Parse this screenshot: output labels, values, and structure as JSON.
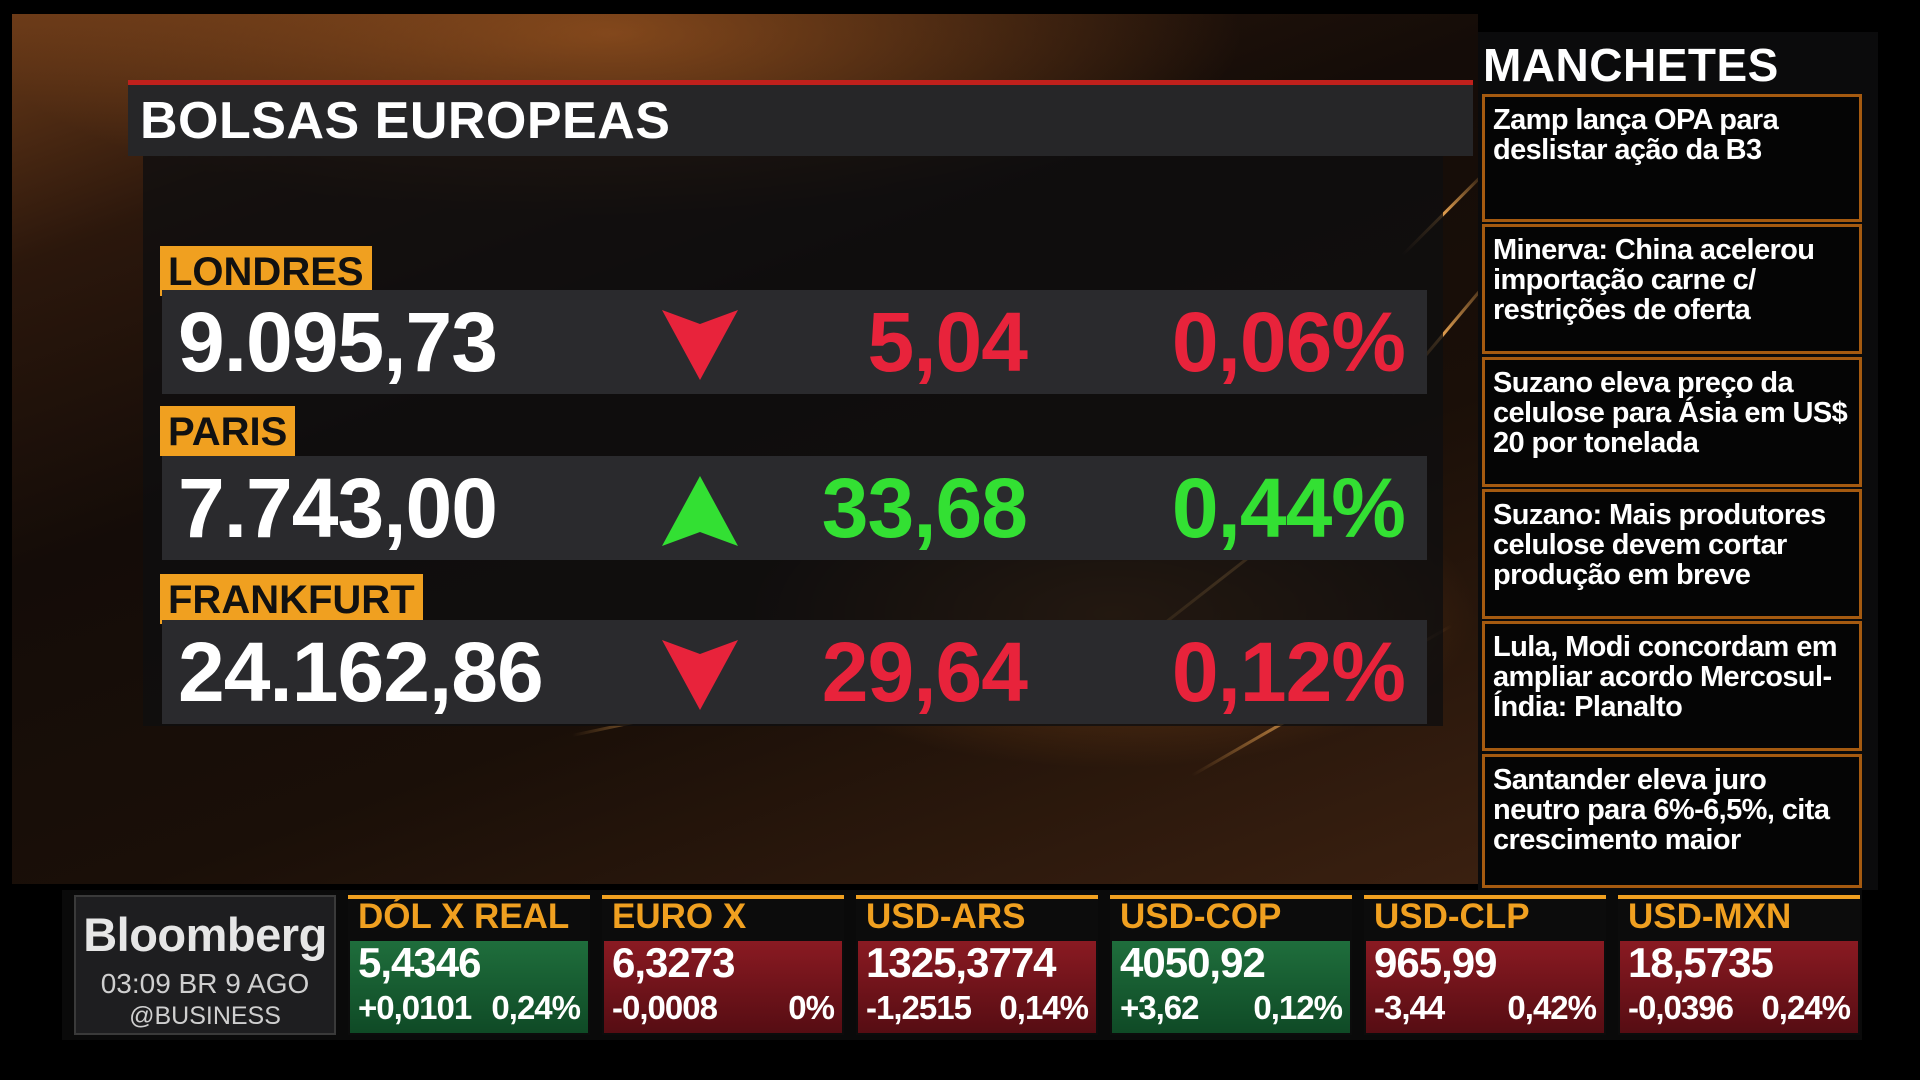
{
  "panel": {
    "title": "BOLSAS EUROPEAS"
  },
  "markets": [
    {
      "city": "LONDRES",
      "value": "9.095,73",
      "direction": "down",
      "change": "5,04",
      "pct": "0,06%"
    },
    {
      "city": "PARIS",
      "value": "7.743,00",
      "direction": "up",
      "change": "33,68",
      "pct": "0,44%"
    },
    {
      "city": "FRANKFURT",
      "value": "24.162,86",
      "direction": "down",
      "change": "29,64",
      "pct": "0,12%"
    }
  ],
  "headlines": {
    "title": "MANCHETES",
    "items": [
      "Zamp lança OPA para deslistar ação da B3",
      "Minerva: China acelerou importação carne c/ restrições de oferta",
      "Suzano eleva preço da celulose para Ásia em US$ 20 por tonelada",
      "Suzano: Mais produtores celulose devem cortar produção em breve",
      "Lula, Modi concordam em ampliar acordo Mercosul-Índia: Planalto",
      "Santander eleva juro neutro para 6%-6,5%, cita crescimento maior"
    ]
  },
  "brand": {
    "logo": "Bloomberg",
    "time": "03:09 BR  9 AGO",
    "handle": "@BUSINESS"
  },
  "tickers": [
    {
      "name": "DÓL X REAL",
      "price": "5,4346",
      "change": "+0,0101",
      "pct": "0,24%",
      "direction": "up"
    },
    {
      "name": "EURO X REAL",
      "price": "6,3273",
      "change": "-0,0008",
      "pct": "0%",
      "direction": "down"
    },
    {
      "name": "USD-ARS",
      "price": "1325,3774",
      "change": "-1,2515",
      "pct": "0,14%",
      "direction": "down"
    },
    {
      "name": "USD-COP",
      "price": "4050,92",
      "change": "+3,62",
      "pct": "0,12%",
      "direction": "up"
    },
    {
      "name": "USD-CLP",
      "price": "965,99",
      "change": "-3,44",
      "pct": "0,42%",
      "direction": "down"
    },
    {
      "name": "USD-MXN",
      "price": "18,5735",
      "change": "-0,0396",
      "pct": "0,24%",
      "direction": "down"
    }
  ],
  "colors": {
    "up": "#33e033",
    "down": "#e8233b",
    "accent": "#f0a020",
    "title_rule": "#c0201c"
  }
}
